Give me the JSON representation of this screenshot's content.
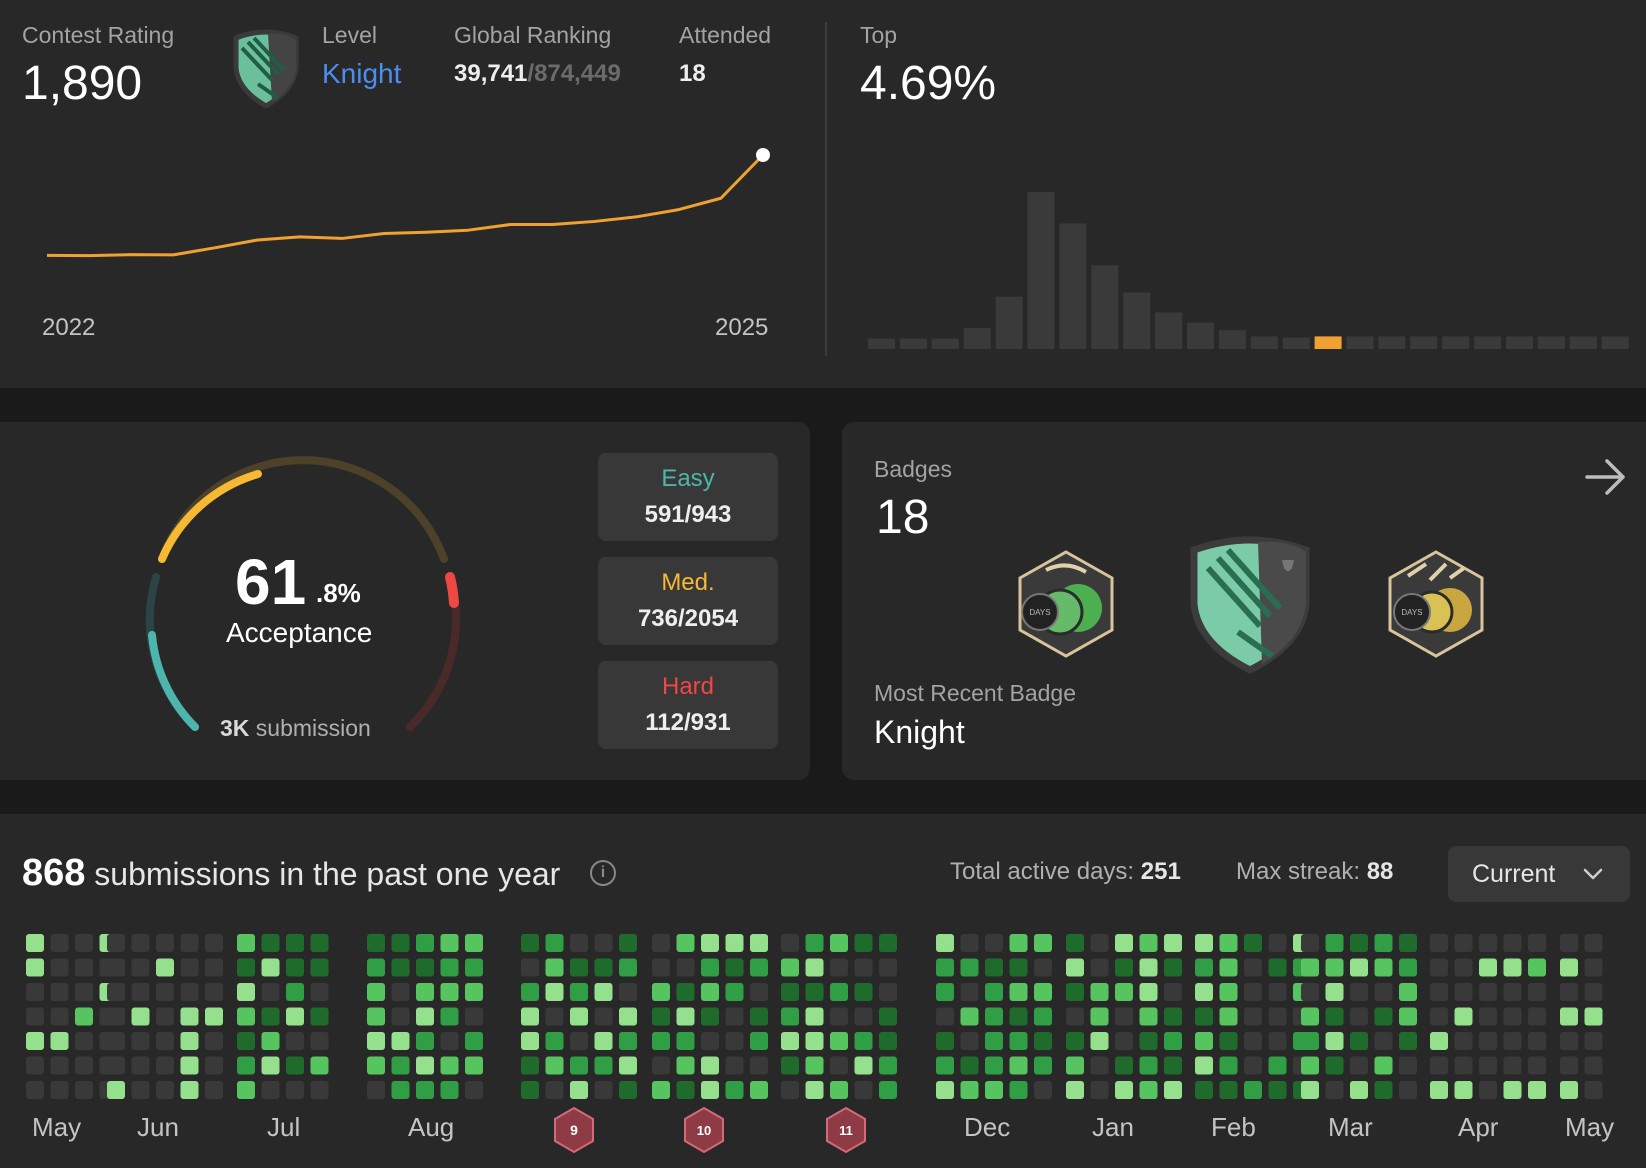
{
  "contest": {
    "rating_label": "Contest Rating",
    "rating_value": "1,890",
    "level_label": "Level",
    "level_value": "Knight",
    "ranking_label": "Global Ranking",
    "ranking_value": "39,741",
    "ranking_total": "/874,449",
    "attended_label": "Attended",
    "attended_value": "18",
    "top_label": "Top",
    "top_value": "4.69%",
    "year_start": "2022",
    "year_end": "2025",
    "line_color": "#f0a132",
    "highlight_color": "#f0a132",
    "bar_color": "#3a3a3a"
  },
  "chart_data": [
    {
      "type": "line",
      "title": "",
      "x": [
        "2022",
        "",
        "",
        "",
        "",
        "",
        "",
        "",
        "",
        "",
        "",
        "",
        "",
        "",
        "",
        "",
        "",
        "2025"
      ],
      "series": [
        {
          "values": [
            1500,
            1499,
            1503,
            1502,
            1530,
            1560,
            1572,
            1566,
            1585,
            1590,
            1598,
            1620,
            1620,
            1632,
            1650,
            1678,
            1722,
            1890
          ]
        }
      ]
    },
    {
      "type": "bar",
      "title": "",
      "values": [
        1,
        1,
        1,
        2,
        5,
        15,
        12,
        8,
        5.4,
        3.5,
        2.5,
        1.8,
        1.2,
        1.1,
        1.2,
        1.2,
        1.2,
        1.2,
        1.2,
        1.2,
        1.2,
        1.2,
        1.2,
        1.2
      ],
      "highlight_index": 14
    }
  ],
  "acceptance": {
    "percent_int": "61",
    "percent_dec": ".8%",
    "label": "Acceptance",
    "submissions_count": "3K",
    "submissions_label": " submission",
    "easy_label": "Easy",
    "easy_value": "591/943",
    "med_label": "Med.",
    "med_value": "736/2054",
    "hard_label": "Hard",
    "hard_value": "112/931",
    "easy_color": "#4db6ac",
    "med_color": "#f5b933",
    "hard_color": "#ef4743"
  },
  "badges": {
    "label": "Badges",
    "count": "18",
    "recent_label": "Most Recent Badge",
    "recent_value": "Knight",
    "badge1_text": "DAYS",
    "badge3_text": "DAYS"
  },
  "submissions": {
    "count": "868",
    "label": " submissions in the past one year",
    "active_label": "Total active days: ",
    "active_value": "251",
    "streak_label": "Max streak: ",
    "streak_value": "88",
    "dropdown_value": "Current",
    "months": [
      "May",
      "Jun",
      "Jul",
      "Aug",
      "Dec",
      "Jan",
      "Feb",
      "Mar",
      "Apr",
      "May"
    ],
    "contest_badges": [
      "9",
      "10",
      "11"
    ]
  }
}
